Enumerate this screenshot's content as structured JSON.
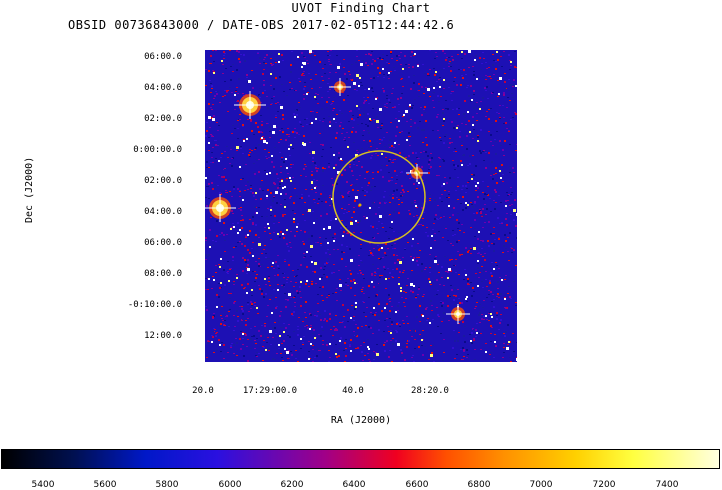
{
  "title": "UVOT Finding Chart",
  "subtitle": "OBSID 00736843000 / DATE-OBS 2017-02-05T12:44:42.6",
  "axes": {
    "ylabel": "Dec (J2000)",
    "xlabel": "RA (J2000)",
    "dec_ticks": [
      "06:00.0",
      "04:00.0",
      "02:00.0",
      "0:00:00.0",
      "02:00.0",
      "04:00.0",
      "06:00.0",
      "08:00.0",
      "-0:10:00.0",
      "12:00.0"
    ],
    "ra_ticks": [
      "20.0",
      "17:29:00.0",
      "40.0",
      "28:20.0"
    ]
  },
  "colorbar": {
    "labels": [
      "5400",
      "5600",
      "5800",
      "6000",
      "6200",
      "6400",
      "6600",
      "6800",
      "7000",
      "7200",
      "7400"
    ],
    "colors": [
      "#000000",
      "#0018c8",
      "#a00088",
      "#f00020",
      "#ff9000",
      "#ffff40",
      "#ffffe0"
    ]
  },
  "image": {
    "background_color": "#1d10b4",
    "circle_color": "#d8c020",
    "marker_color": "#e0b000"
  }
}
